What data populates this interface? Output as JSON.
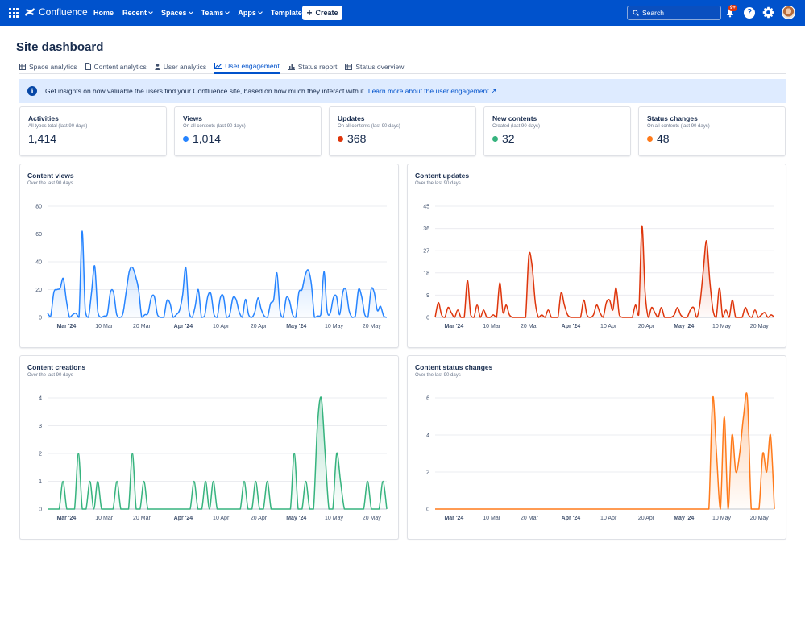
{
  "nav": {
    "brand": "Confluence",
    "items": [
      {
        "label": "Home",
        "dropdown": false
      },
      {
        "label": "Recent",
        "dropdown": true
      },
      {
        "label": "Spaces",
        "dropdown": true
      },
      {
        "label": "Teams",
        "dropdown": true
      },
      {
        "label": "Apps",
        "dropdown": true
      },
      {
        "label": "Templates",
        "dropdown": false
      }
    ],
    "create_label": "Create",
    "search_placeholder": "Search",
    "notification_badge": "9+",
    "help_label": "?"
  },
  "page": {
    "title": "Site dashboard"
  },
  "tabs": [
    {
      "label": "Space analytics",
      "icon": "table-icon",
      "active": false
    },
    {
      "label": "Content analytics",
      "icon": "document-icon",
      "active": false
    },
    {
      "label": "User analytics",
      "icon": "person-icon",
      "active": false
    },
    {
      "label": "User engagement",
      "icon": "line-chart-icon",
      "active": true
    },
    {
      "label": "Status report",
      "icon": "bar-chart-icon",
      "active": false
    },
    {
      "label": "Status overview",
      "icon": "grid-icon",
      "active": false
    }
  ],
  "banner": {
    "text": "Get insights on how valuable the users find your Confluence site, based on how much they interact with it.",
    "link": "Learn more about the user engagement"
  },
  "stats": [
    {
      "title": "Activities",
      "subtitle": "All types total (last 90 days)",
      "value": "1,414",
      "color": ""
    },
    {
      "title": "Views",
      "subtitle": "On all contents (last 90 days)",
      "value": "1,014",
      "color": "#2684ff"
    },
    {
      "title": "Updates",
      "subtitle": "On all contents (last 90 days)",
      "value": "368",
      "color": "#de350b"
    },
    {
      "title": "New contents",
      "subtitle": "Created (last 90 days)",
      "value": "32",
      "color": "#36b37e"
    },
    {
      "title": "Status changes",
      "subtitle": "On all contents (last 90 days)",
      "value": "48",
      "color": "#ff7a1a"
    }
  ],
  "chart_data": [
    {
      "type": "area",
      "title": "Content views",
      "subtitle": "Over the last 90 days",
      "color": "#2684ff",
      "ylim": [
        0,
        80
      ],
      "yticks": [
        0,
        20,
        40,
        60,
        80
      ],
      "xlim": [
        0,
        90
      ],
      "xticks": [
        {
          "pos": 5,
          "label": "Mar '24",
          "bold": true
        },
        {
          "pos": 15,
          "label": "10 Mar"
        },
        {
          "pos": 25,
          "label": "20 Mar"
        },
        {
          "pos": 36,
          "label": "Apr '24",
          "bold": true
        },
        {
          "pos": 46,
          "label": "10 Apr"
        },
        {
          "pos": 56,
          "label": "20 Apr"
        },
        {
          "pos": 66,
          "label": "May '24",
          "bold": true
        },
        {
          "pos": 76,
          "label": "10 May"
        },
        {
          "pos": 86,
          "label": "20 May"
        }
      ],
      "values": [
        3,
        1,
        18,
        20,
        21,
        28,
        12,
        0,
        2,
        3,
        0,
        62,
        5,
        0,
        18,
        37,
        4,
        0,
        1,
        2,
        18,
        18,
        2,
        0,
        3,
        18,
        33,
        36,
        30,
        20,
        0,
        2,
        3,
        14,
        15,
        2,
        0,
        0,
        12,
        10,
        0,
        2,
        5,
        16,
        36,
        5,
        0,
        8,
        20,
        0,
        1,
        15,
        17,
        2,
        0,
        14,
        15,
        0,
        2,
        14,
        13,
        4,
        0,
        13,
        2,
        0,
        4,
        14,
        6,
        1,
        0,
        10,
        13,
        32,
        5,
        0,
        14,
        12,
        2,
        0,
        18,
        20,
        30,
        34,
        24,
        0,
        1,
        2,
        33,
        5,
        3,
        14,
        15,
        2,
        18,
        20,
        5,
        0,
        1,
        20,
        15,
        2,
        0,
        20,
        18,
        5,
        8,
        1,
        0
      ]
    },
    {
      "type": "area",
      "title": "Content updates",
      "subtitle": "Over the last 90 days",
      "color": "#de350b",
      "ylim": [
        0,
        45
      ],
      "yticks": [
        0,
        9,
        18,
        27,
        36,
        45
      ],
      "xlim": [
        0,
        90
      ],
      "xticks": [
        {
          "pos": 5,
          "label": "Mar '24",
          "bold": true
        },
        {
          "pos": 15,
          "label": "10 Mar"
        },
        {
          "pos": 25,
          "label": "20 Mar"
        },
        {
          "pos": 36,
          "label": "Apr '24",
          "bold": true
        },
        {
          "pos": 46,
          "label": "10 Apr"
        },
        {
          "pos": 56,
          "label": "20 Apr"
        },
        {
          "pos": 66,
          "label": "May '24",
          "bold": true
        },
        {
          "pos": 76,
          "label": "10 May"
        },
        {
          "pos": 86,
          "label": "20 May"
        }
      ],
      "values": [
        0,
        6,
        1,
        0,
        4,
        2,
        0,
        3,
        0,
        0,
        15,
        1,
        0,
        5,
        0,
        3,
        0,
        0,
        1,
        0,
        14,
        2,
        5,
        1,
        0,
        0,
        0,
        0,
        0,
        25,
        21,
        6,
        0,
        1,
        0,
        3,
        0,
        0,
        0,
        10,
        5,
        1,
        0,
        0,
        0,
        0,
        7,
        1,
        0,
        1,
        5,
        2,
        0,
        6,
        7,
        3,
        12,
        1,
        0,
        0,
        0,
        0,
        5,
        1,
        37,
        10,
        0,
        4,
        2,
        0,
        4,
        0,
        0,
        0,
        1,
        4,
        1,
        0,
        0,
        3,
        4,
        0,
        6,
        19,
        31,
        15,
        3,
        0,
        12,
        0,
        3,
        0,
        7,
        0,
        0,
        0,
        4,
        1,
        0,
        3,
        0,
        1,
        2,
        0,
        1,
        0
      ]
    },
    {
      "type": "area",
      "title": "Content creations",
      "subtitle": "Over the last 90 days",
      "color": "#36b37e",
      "ylim": [
        0,
        4
      ],
      "yticks": [
        0,
        1,
        2,
        3,
        4
      ],
      "xlim": [
        0,
        90
      ],
      "xticks": [
        {
          "pos": 5,
          "label": "Mar '24",
          "bold": true
        },
        {
          "pos": 15,
          "label": "10 Mar"
        },
        {
          "pos": 25,
          "label": "20 Mar"
        },
        {
          "pos": 36,
          "label": "Apr '24",
          "bold": true
        },
        {
          "pos": 46,
          "label": "10 Apr"
        },
        {
          "pos": 56,
          "label": "20 Apr"
        },
        {
          "pos": 66,
          "label": "May '24",
          "bold": true
        },
        {
          "pos": 76,
          "label": "10 May"
        },
        {
          "pos": 86,
          "label": "20 May"
        }
      ],
      "values": [
        0,
        0,
        0,
        0,
        1,
        0,
        0,
        0,
        2,
        0,
        0,
        1,
        0,
        1,
        0,
        0,
        0,
        0,
        1,
        0,
        0,
        0,
        2,
        0,
        0,
        1,
        0,
        0,
        0,
        0,
        0,
        0,
        0,
        0,
        0,
        0,
        0,
        0,
        1,
        0,
        0,
        1,
        0,
        1,
        0,
        0,
        0,
        0,
        0,
        0,
        0,
        1,
        0,
        0,
        1,
        0,
        0,
        1,
        0,
        0,
        0,
        0,
        0,
        0,
        2,
        0,
        0,
        1,
        0,
        0,
        3,
        4,
        2,
        0,
        0,
        2,
        1,
        0,
        0,
        0,
        0,
        0,
        0,
        1,
        0,
        0,
        0,
        1,
        0
      ]
    },
    {
      "type": "area",
      "title": "Content status changes",
      "subtitle": "Over the last 90 days",
      "color": "#ff7a1a",
      "ylim": [
        0,
        6
      ],
      "yticks": [
        0,
        2,
        4,
        6
      ],
      "xlim": [
        0,
        90
      ],
      "xticks": [
        {
          "pos": 5,
          "label": "Mar '24",
          "bold": true
        },
        {
          "pos": 15,
          "label": "10 Mar"
        },
        {
          "pos": 25,
          "label": "20 Mar"
        },
        {
          "pos": 36,
          "label": "Apr '24",
          "bold": true
        },
        {
          "pos": 46,
          "label": "10 Apr"
        },
        {
          "pos": 56,
          "label": "20 Apr"
        },
        {
          "pos": 66,
          "label": "May '24",
          "bold": true
        },
        {
          "pos": 76,
          "label": "10 May"
        },
        {
          "pos": 86,
          "label": "20 May"
        }
      ],
      "values": [
        0,
        0,
        0,
        0,
        0,
        0,
        0,
        0,
        0,
        0,
        0,
        0,
        0,
        0,
        0,
        0,
        0,
        0,
        0,
        0,
        0,
        0,
        0,
        0,
        0,
        0,
        0,
        0,
        0,
        0,
        0,
        0,
        0,
        0,
        0,
        0,
        0,
        0,
        0,
        0,
        0,
        0,
        0,
        0,
        0,
        0,
        0,
        0,
        0,
        0,
        0,
        0,
        0,
        0,
        0,
        0,
        0,
        0,
        0,
        0,
        0,
        0,
        0,
        0,
        0,
        0,
        0,
        0,
        0,
        0,
        0,
        0,
        6,
        3,
        0,
        5,
        0,
        4,
        2,
        3,
        5,
        6,
        0,
        0,
        0,
        3,
        2,
        4,
        0
      ]
    }
  ]
}
